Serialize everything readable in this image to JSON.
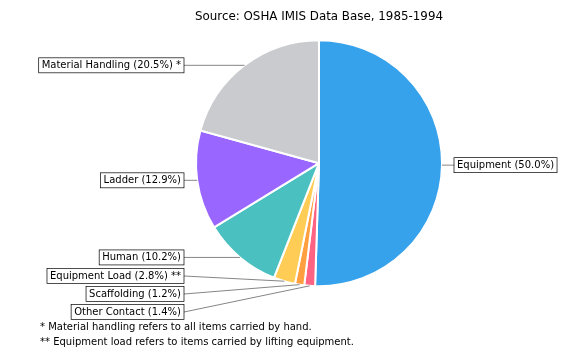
{
  "chart_data": {
    "type": "pie",
    "title": "Source: OSHA IMIS Data Base, 1985-1994",
    "categories": [
      "Equipment (50.0%)",
      "Other Contact (1.4%)",
      "Scaffolding (1.2%)",
      "Equipment Load (2.8%) **",
      "Human (10.2%)",
      "Ladder (12.9%)",
      "Material Handling (20.5%) *"
    ],
    "values": [
      50.0,
      1.4,
      1.2,
      2.8,
      10.2,
      12.9,
      20.5
    ],
    "annotations": [
      "* Material handling refers to all items carried by hand.",
      "** Equipment load refers to items carried by lifting equipment."
    ]
  }
}
